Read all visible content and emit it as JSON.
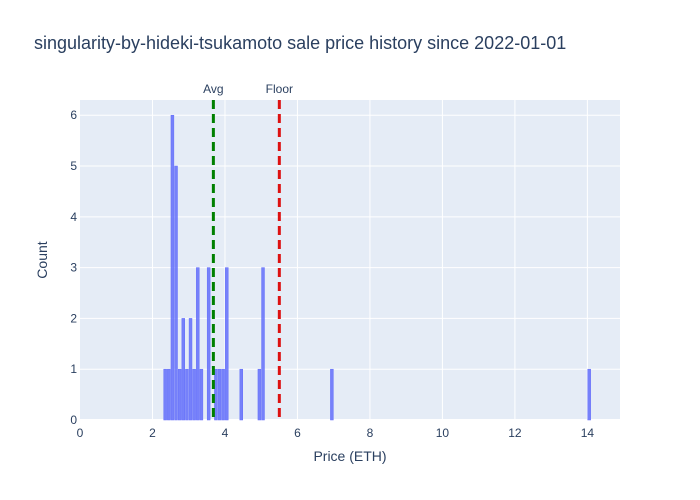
{
  "chart_data": {
    "type": "bar",
    "title": "singularity-by-hideki-tsukamoto sale price history since 2022-01-01",
    "xlabel": "Price (ETH)",
    "ylabel": "Count",
    "xlim": [
      0,
      14.9
    ],
    "ylim": [
      0,
      6.3
    ],
    "xticks": [
      0,
      2,
      4,
      6,
      8,
      10,
      12,
      14
    ],
    "yticks": [
      0,
      1,
      2,
      3,
      4,
      5,
      6
    ],
    "grid": true,
    "bin_width": 0.1,
    "bar_color": "#636efa",
    "bins": [
      {
        "x": 2.35,
        "count": 1
      },
      {
        "x": 2.45,
        "count": 1
      },
      {
        "x": 2.55,
        "count": 6
      },
      {
        "x": 2.65,
        "count": 5
      },
      {
        "x": 2.75,
        "count": 1
      },
      {
        "x": 2.85,
        "count": 2
      },
      {
        "x": 2.95,
        "count": 1
      },
      {
        "x": 3.05,
        "count": 2
      },
      {
        "x": 3.15,
        "count": 1
      },
      {
        "x": 3.25,
        "count": 3
      },
      {
        "x": 3.35,
        "count": 1
      },
      {
        "x": 3.55,
        "count": 3
      },
      {
        "x": 3.75,
        "count": 1
      },
      {
        "x": 3.85,
        "count": 1
      },
      {
        "x": 3.95,
        "count": 1
      },
      {
        "x": 4.05,
        "count": 3
      },
      {
        "x": 4.45,
        "count": 1
      },
      {
        "x": 4.95,
        "count": 1
      },
      {
        "x": 5.05,
        "count": 3
      },
      {
        "x": 6.95,
        "count": 1
      },
      {
        "x": 14.05,
        "count": 1
      }
    ],
    "reference_lines": [
      {
        "label": "Avg",
        "x": 3.68,
        "color": "#008000"
      },
      {
        "label": "Floor",
        "x": 5.5,
        "color": "#dd1111"
      }
    ]
  }
}
